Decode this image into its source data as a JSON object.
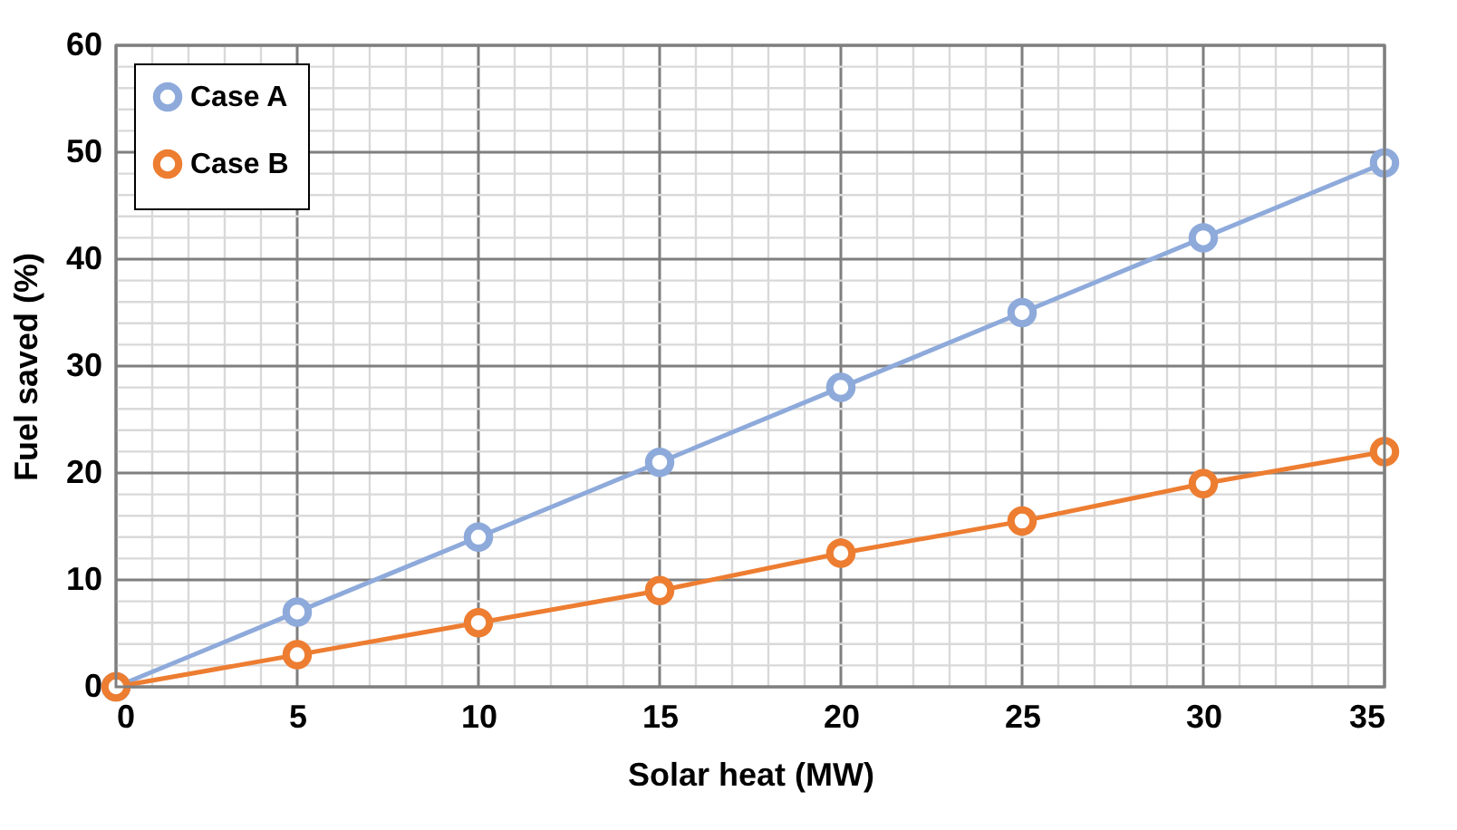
{
  "chart_data": {
    "type": "line",
    "xlabel": "Solar heat (MW)",
    "ylabel": "Fuel saved (%)",
    "x": [
      0,
      5,
      10,
      15,
      20,
      25,
      30,
      35
    ],
    "series": [
      {
        "name": "Case A",
        "color": "#8eaadb",
        "values": [
          0,
          7,
          14,
          21,
          28,
          35,
          42,
          49
        ]
      },
      {
        "name": "Case B",
        "color": "#ed7d31",
        "values": [
          0,
          3,
          6,
          9,
          12.5,
          15.5,
          19,
          22
        ]
      }
    ],
    "xlim": [
      0,
      35
    ],
    "xticks": [
      0,
      {
        "value": 1,
        "label": null
      },
      {
        "value": 2,
        "label": null
      },
      {
        "value": 3,
        "label": null
      },
      {
        "value": 4,
        "label": null
      },
      5,
      {
        "value": 6,
        "label": null
      },
      {
        "value": 7,
        "label": null
      },
      {
        "value": 8,
        "label": null
      },
      {
        "value": 9,
        "label": null
      },
      10,
      {
        "value": 11,
        "label": null
      },
      {
        "value": 12,
        "label": null
      },
      {
        "value": 13,
        "label": null
      },
      {
        "value": 14,
        "label": null
      },
      15,
      {
        "value": 16,
        "label": null
      },
      {
        "value": 17,
        "label": null
      },
      {
        "value": 18,
        "label": null
      },
      {
        "value": 19,
        "label": null
      },
      20,
      {
        "value": 21,
        "label": null
      },
      {
        "value": 22,
        "label": null
      },
      {
        "value": 23,
        "label": null
      },
      {
        "value": 24,
        "label": null
      },
      25,
      {
        "value": 26,
        "label": null
      },
      {
        "value": 27,
        "label": null
      },
      {
        "value": 28,
        "label": null
      },
      {
        "value": 29,
        "label": null
      },
      30,
      {
        "value": 31,
        "label": null
      },
      {
        "value": 32,
        "label": null
      },
      {
        "value": 33,
        "label": null
      },
      {
        "value": 34,
        "label": null
      },
      35
    ],
    "ylim": [
      0,
      60
    ],
    "yticks": [
      0,
      {
        "value": 2,
        "label": null
      },
      {
        "value": 4,
        "label": null
      },
      {
        "value": 6,
        "label": null
      },
      {
        "value": 8,
        "label": null
      },
      10,
      {
        "value": 12,
        "label": null
      },
      {
        "value": 14,
        "label": null
      },
      {
        "value": 16,
        "label": null
      },
      {
        "value": 18,
        "label": null
      },
      20,
      {
        "value": 22,
        "label": null
      },
      {
        "value": 24,
        "label": null
      },
      {
        "value": 26,
        "label": null
      },
      {
        "value": 28,
        "label": null
      },
      30,
      {
        "value": 32,
        "label": null
      },
      {
        "value": 34,
        "label": null
      },
      {
        "value": 36,
        "label": null
      },
      {
        "value": 38,
        "label": null
      },
      40,
      {
        "value": 42,
        "label": null
      },
      {
        "value": 44,
        "label": null
      },
      {
        "value": 46,
        "label": null
      },
      {
        "value": 48,
        "label": null
      },
      50,
      {
        "value": 52,
        "label": null
      },
      {
        "value": 54,
        "label": null
      },
      {
        "value": 56,
        "label": null
      },
      {
        "value": 58,
        "label": null
      },
      60
    ],
    "grid": true,
    "legend": "top left",
    "marker": "circle",
    "line_style": "solid"
  }
}
